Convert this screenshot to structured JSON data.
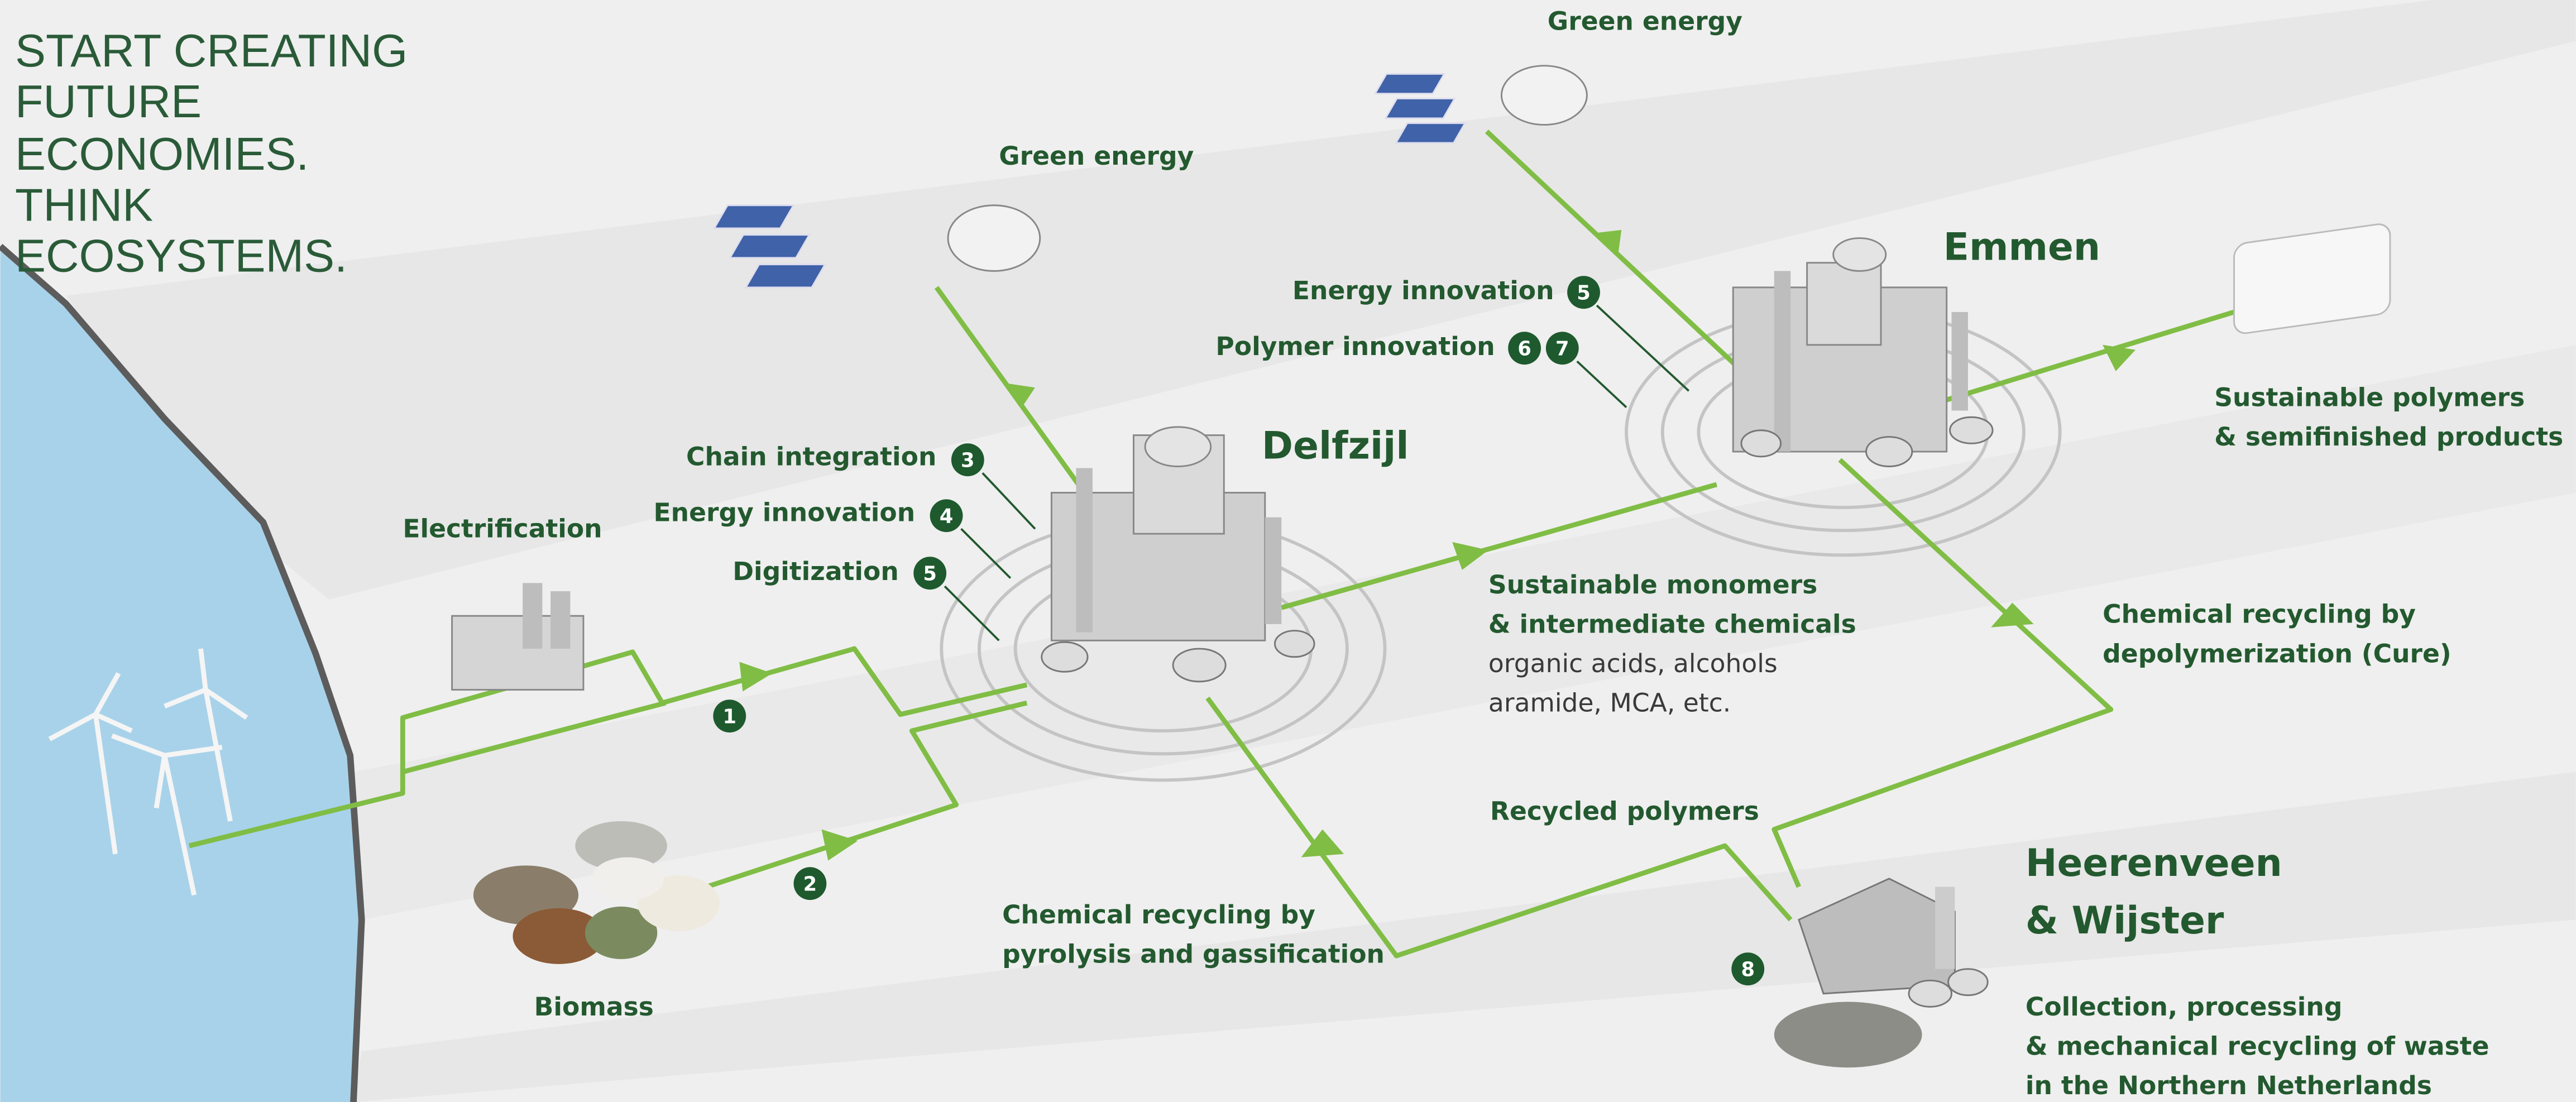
{
  "headline": {
    "lines": [
      "START CREATING",
      "FUTURE",
      "ECONOMIES.",
      "THINK",
      "ECOSYSTEMS."
    ]
  },
  "hubs": {
    "delfzijl": "Delfzijl",
    "emmen": "Emmen",
    "heerenveen": [
      "Heerenveen",
      "& Wijster"
    ]
  },
  "inputs": {
    "green_energy_1": "Green energy",
    "green_energy_2": "Green energy",
    "electrification": "Electrification",
    "biomass": "Biomass"
  },
  "innovations": [
    {
      "text": "Chain integration",
      "badges": [
        "3"
      ]
    },
    {
      "text": "Energy innovation",
      "badges": [
        "4"
      ]
    },
    {
      "text": "Digitization",
      "badges": [
        "5"
      ]
    },
    {
      "text": "Energy innovation",
      "badges": [
        "5"
      ]
    },
    {
      "text": "Polymer innovation",
      "badges": [
        "6",
        "7"
      ]
    }
  ],
  "flow_badges": [
    "1",
    "2",
    "8"
  ],
  "outputs": {
    "monomers": {
      "title_lines": [
        "Sustainable monomers",
        "& intermediate chemicals"
      ],
      "detail_lines": [
        "organic acids, alcohols",
        "aramide, MCA, etc."
      ]
    },
    "polymers": [
      "Sustainable polymers",
      "& semifinished products"
    ],
    "cure": [
      "Chemical recycling by",
      "depolymerization (Cure)"
    ],
    "recycled": "Recycled polymers",
    "pyrolysis": [
      "Chemical recycling by",
      "pyrolysis and gassification"
    ],
    "collection": [
      "Collection, processing",
      "& mechanical recycling of waste",
      "in the Northern Netherlands"
    ]
  }
}
